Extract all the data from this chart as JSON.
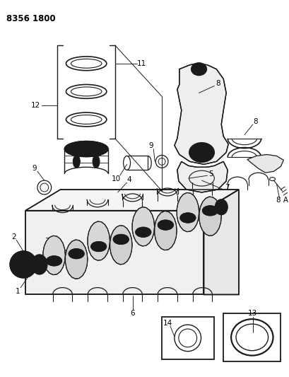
{
  "title": "8356 1800",
  "bg_color": "#ffffff",
  "line_color": "#1a1a1a",
  "fig_width": 4.1,
  "fig_height": 5.33,
  "dpi": 100
}
